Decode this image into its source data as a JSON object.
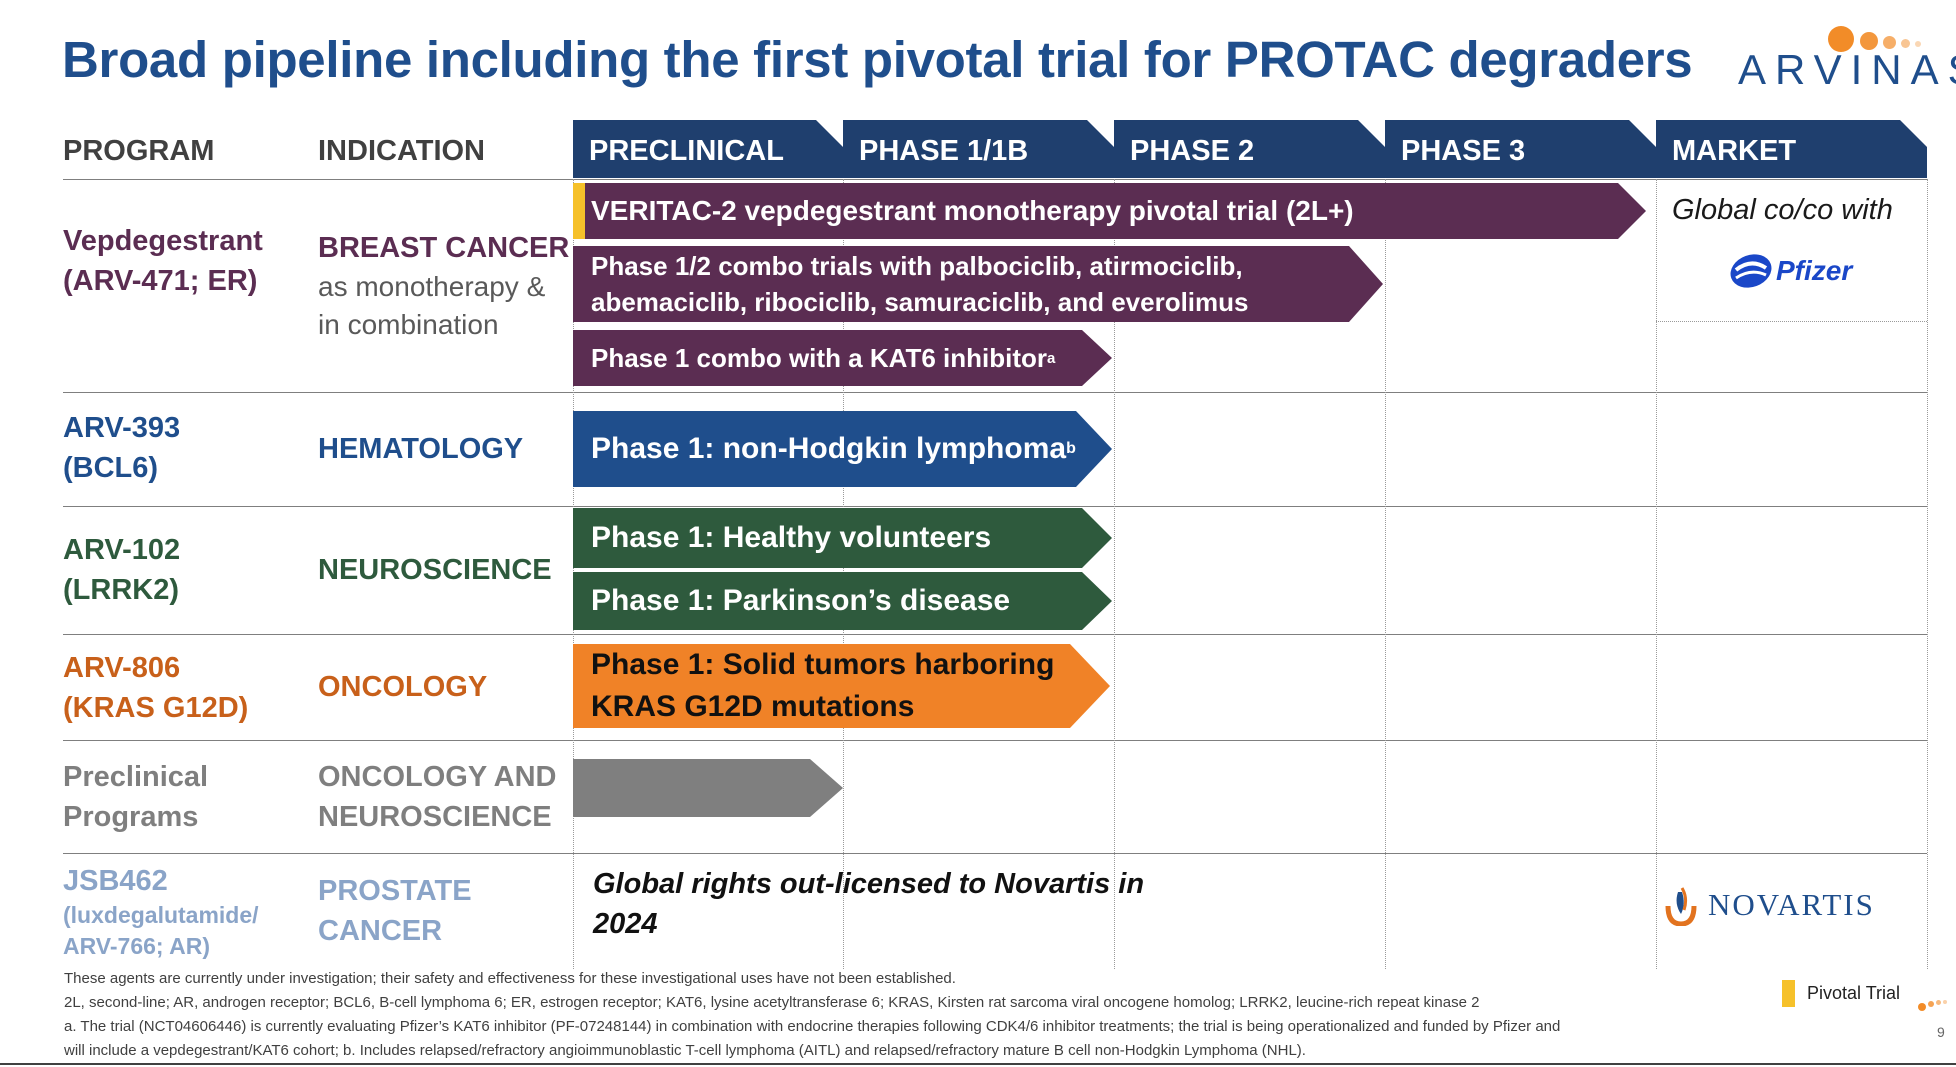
{
  "title": "Broad pipeline including the first pivotal trial for PROTAC degraders",
  "logo": {
    "text": "ARVINAS",
    "dot_color": "#f28c28"
  },
  "columns": {
    "program": "PROGRAM",
    "indication": "INDICATION",
    "phases": [
      "PRECLINICAL",
      "PHASE 1/1B",
      "PHASE 2",
      "PHASE 3",
      "MARKET"
    ]
  },
  "colors": {
    "header": "#1f3f6e",
    "purple": "#5b2d52",
    "blue": "#1f4e8c",
    "green": "#2e5a3d",
    "orange": "#f08227",
    "gray": "#7f7f7f",
    "pivotal": "#f6c12a"
  },
  "rows": {
    "vepdeg": {
      "program_line1": "Vepdegestrant",
      "program_line2": "(ARV-471; ER)",
      "indication": "BREAST CANCER",
      "indication_sub1": "as monotherapy &",
      "indication_sub2": "in combination",
      "bar1": "VERITAC-2 vepdegestrant monotherapy pivotal trial (2L+)",
      "bar2_line1": "Phase 1/2 combo trials with palbociclib, atirmociclib,",
      "bar2_line2": "abemaciclib, ribociclib, samuraciclib, and everolimus",
      "bar3": "Phase 1 combo with a KAT6 inhibitor",
      "bar3_sup": "a",
      "market_text": "Global co/co with",
      "partner": "Pfizer"
    },
    "arv393": {
      "program_line1": "ARV-393",
      "program_line2": "(BCL6)",
      "indication": "HEMATOLOGY",
      "bar": "Phase 1: non-Hodgkin lymphoma",
      "bar_sup": "b"
    },
    "arv102": {
      "program_line1": "ARV-102",
      "program_line2": "(LRRK2)",
      "indication": "NEUROSCIENCE",
      "bar1": "Phase 1: Healthy volunteers",
      "bar2": "Phase 1: Parkinson’s disease"
    },
    "arv806": {
      "program_line1": "ARV-806",
      "program_line2": "(KRAS G12D)",
      "indication": "ONCOLOGY",
      "bar_line1": "Phase 1: Solid tumors harboring",
      "bar_line2": "KRAS G12D mutations"
    },
    "preclinical": {
      "program_line1": "Preclinical",
      "program_line2": "Programs",
      "indication_line1": "ONCOLOGY AND",
      "indication_line2": "NEUROSCIENCE"
    },
    "jsb462": {
      "program_line1": "JSB462",
      "program_line2": "(luxdegalutamide/",
      "program_line3": "ARV-766; AR)",
      "indication_line1": "PROSTATE",
      "indication_line2": "CANCER",
      "note_line1": "Global rights out-licensed to Novartis in",
      "note_line2": "2024",
      "partner": "NOVARTIS"
    }
  },
  "legend": {
    "label": "Pivotal Trial"
  },
  "footnotes": [
    "These agents are currently under investigation; their safety and effectiveness for these investigational uses have not been established.",
    "2L, second-line; AR, androgen receptor; BCL6, B-cell lymphoma 6; ER, estrogen receptor; KAT6, lysine acetyltransferase 6; KRAS, Kirsten rat sarcoma viral oncogene homolog; LRRK2, leucine-rich repeat kinase 2",
    "a. The trial (NCT04606446) is currently evaluating Pfizer’s KAT6 inhibitor (PF-07248144) in combination with endocrine therapies following CDK4/6 inhibitor treatments; the trial is being operationalized and funded by Pfizer and",
    "will include a vepdegestrant/KAT6 cohort; b. Includes relapsed/refractory angioimmunoblastic T-cell lymphoma (AITL) and relapsed/refractory mature B cell non-Hodgkin Lymphoma (NHL)."
  ],
  "page_number": "9"
}
